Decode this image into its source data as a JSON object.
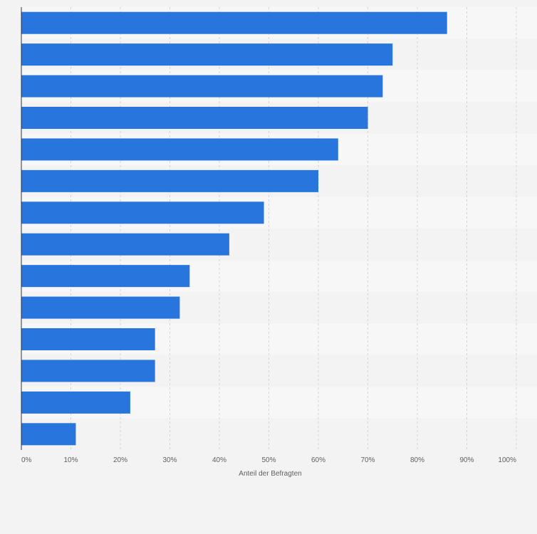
{
  "chart_data": {
    "type": "bar",
    "orientation": "horizontal",
    "categories": [
      "",
      "",
      "",
      "",
      "",
      "",
      "",
      "",
      "",
      "",
      "",
      "",
      "",
      ""
    ],
    "values": [
      86,
      75,
      73,
      70,
      64,
      60,
      49,
      42,
      34,
      32,
      27,
      27,
      22,
      11
    ],
    "xlim": [
      0,
      100
    ],
    "xticks": [
      "0%",
      "10%",
      "20%",
      "30%",
      "40%",
      "50%",
      "60%",
      "70%",
      "80%",
      "90%",
      "100%"
    ],
    "xlabel": "Anteil der Befragten",
    "grid": true,
    "colors": {
      "bar": "#2876dd",
      "band_light": "#f7f7f7",
      "band_dark": "#f3f3f3",
      "grid": "#d4d4d4",
      "axis": "#333333"
    }
  }
}
